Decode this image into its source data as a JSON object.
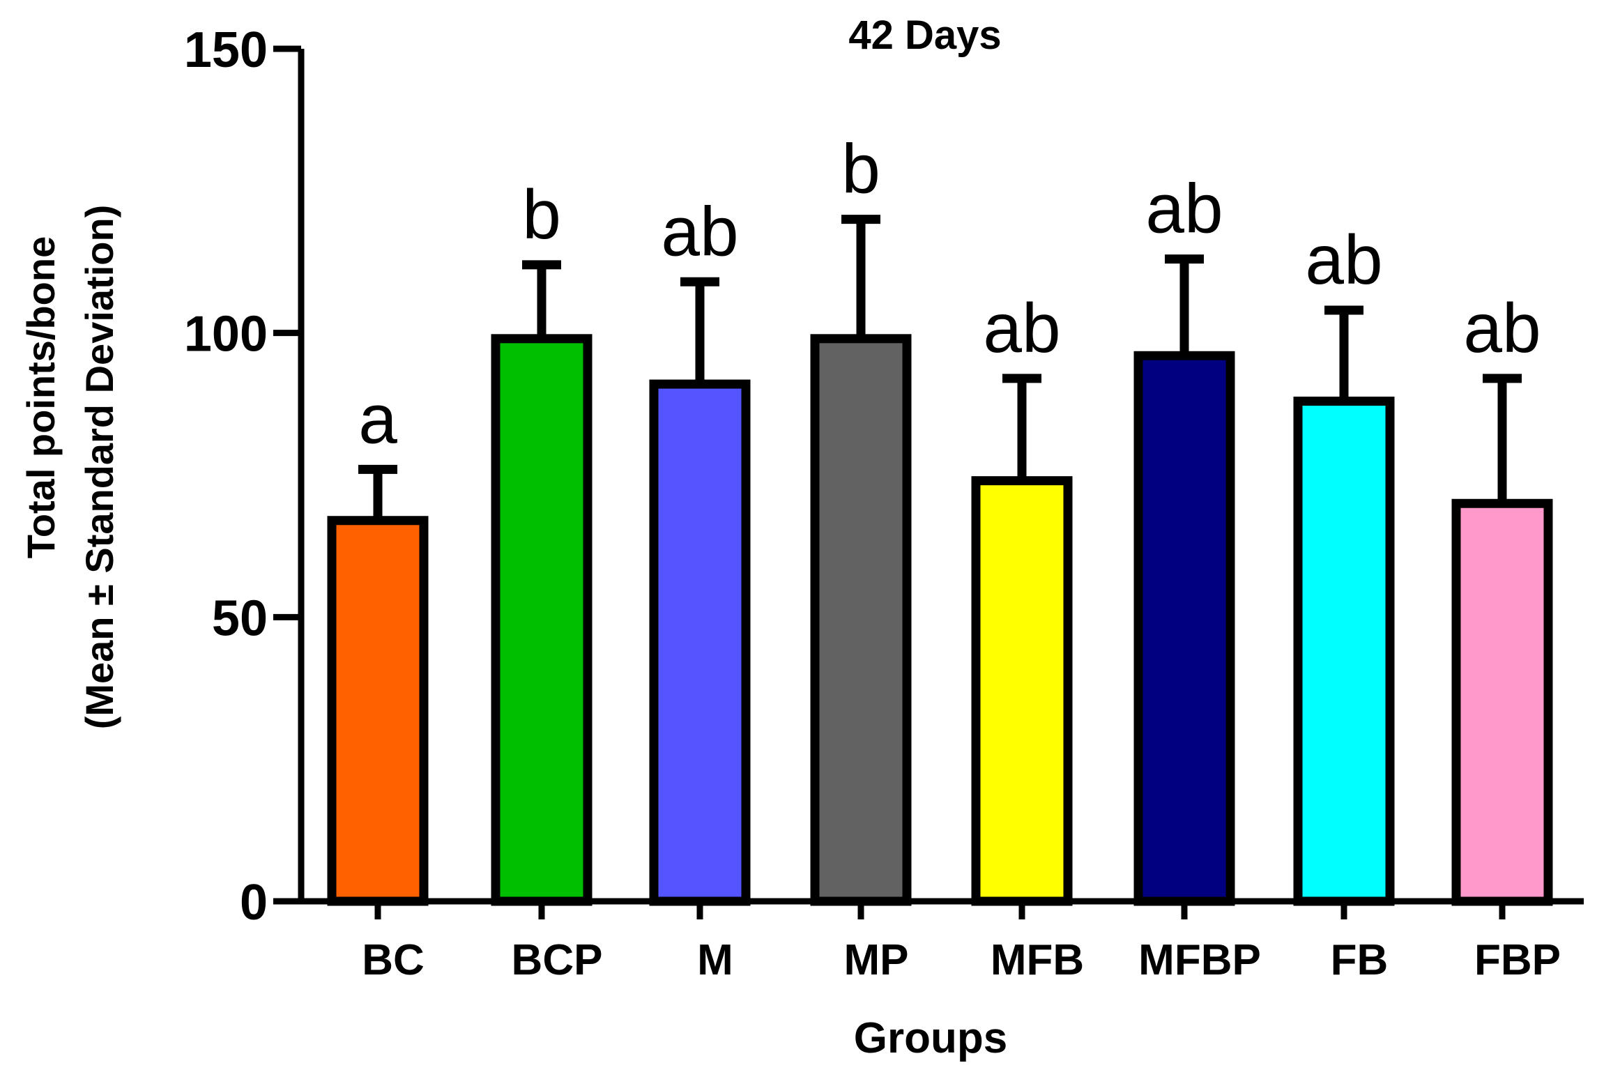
{
  "chart_data": {
    "type": "bar",
    "title": "42 Days",
    "xlabel": "Groups",
    "ylabel_lines": [
      "Total points/bone",
      "(Mean ± Standard Deviation)"
    ],
    "ylim": [
      0,
      150
    ],
    "yticks": [
      0,
      50,
      100,
      150
    ],
    "categories": [
      "BC",
      "BCP",
      "M",
      "MP",
      "MFB",
      "MFBP",
      "FB",
      "FBP"
    ],
    "values": [
      67,
      99,
      91,
      99,
      74,
      96,
      88,
      70
    ],
    "errors": [
      9,
      13,
      18,
      21,
      18,
      17,
      16,
      22
    ],
    "significance": [
      "a",
      "b",
      "ab",
      "b",
      "ab",
      "ab",
      "ab",
      "ab"
    ],
    "colors": [
      "#FF6000",
      "#00BE00",
      "#5555FF",
      "#626262",
      "#FFFF00",
      "#000080",
      "#00FFFF",
      "#FF99CC"
    ],
    "grid": false,
    "legend": "none"
  }
}
